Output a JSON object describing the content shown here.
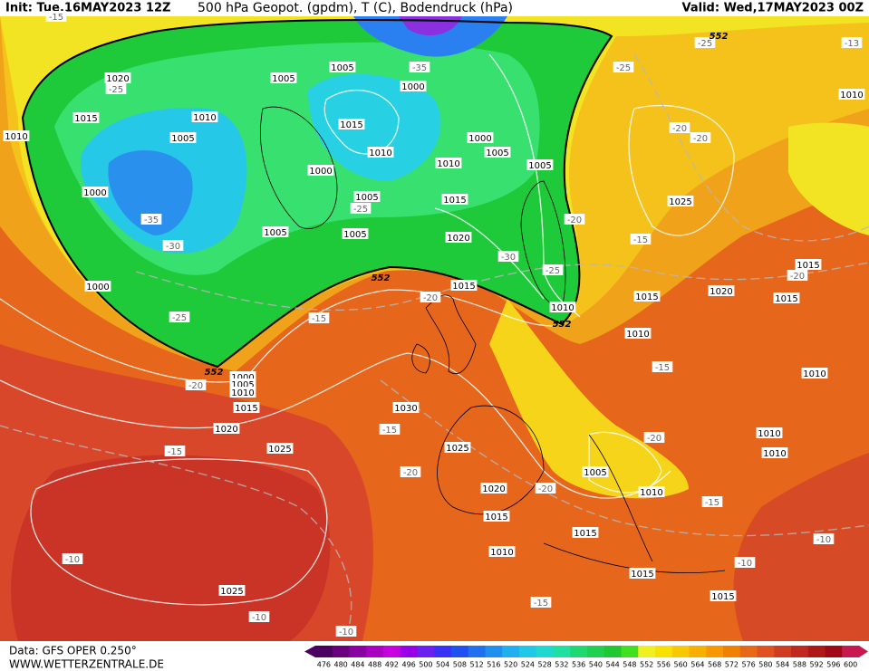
{
  "header": {
    "init": "Init: Tue,16MAY2023 12Z",
    "title": "500 hPa Geopot. (gpdm), T (C), Bodendruck (hPa)",
    "valid": "Valid: Wed,17MAY2023 00Z"
  },
  "footer": {
    "source": "Data: GFS OPER 0.250°",
    "website": "WWW.WETTERZENTRALE.DE"
  },
  "isobar_labels": [
    "1020",
    "1015",
    "1010",
    "1005",
    "1000",
    "1005",
    "1005",
    "1000",
    "1015",
    "1010",
    "1000",
    "1010",
    "1000",
    "1005",
    "1005",
    "1005",
    "1015",
    "1005",
    "1005",
    "1020",
    "1015",
    "1000",
    "1010",
    "1015",
    "1020",
    "1015",
    "1015",
    "1025",
    "1010",
    "1010",
    "1000",
    "1005",
    "1010",
    "1015",
    "1020",
    "1025",
    "1030",
    "1025",
    "1020",
    "1015",
    "1005",
    "1010",
    "1015",
    "1010",
    "1015",
    "1015",
    "1025",
    "1010",
    "1010",
    "1010",
    "1010"
  ],
  "temperature_labels": [
    "-25",
    "-35",
    "-30",
    "-25",
    "-35",
    "-25",
    "-25",
    "-20",
    "-20",
    "-25",
    "-20",
    "-15",
    "-30",
    "-25",
    "-20",
    "-15",
    "-20",
    "-15",
    "-20",
    "-15",
    "-20",
    "-15",
    "-20",
    "-20",
    "-15",
    "-10",
    "-10",
    "-10",
    "-15",
    "-10",
    "-10",
    "-13",
    "-15"
  ],
  "contour_552_labels": [
    "552",
    "552",
    "552",
    "552"
  ],
  "colorbar": {
    "values": [
      476,
      480,
      484,
      488,
      492,
      496,
      500,
      504,
      508,
      512,
      516,
      520,
      524,
      528,
      532,
      536,
      540,
      544,
      548,
      552,
      556,
      560,
      564,
      568,
      572,
      576,
      580,
      584,
      588,
      592,
      596,
      600
    ],
    "colors": [
      "#4b0060",
      "#6a0080",
      "#8a00a0",
      "#aa00c0",
      "#c800e0",
      "#9a00e8",
      "#6a20f0",
      "#3a30f8",
      "#2050f0",
      "#2070f0",
      "#2090f0",
      "#20b0f0",
      "#20c8e8",
      "#20d8d0",
      "#20e0a0",
      "#20d870",
      "#20d050",
      "#20c830",
      "#40e020",
      "#f0f020",
      "#f8e000",
      "#f8c800",
      "#f8b000",
      "#f89800",
      "#f08000",
      "#e86818",
      "#e05020",
      "#d03c20",
      "#c02820",
      "#b01818",
      "#a00818",
      "#c81850"
    ]
  }
}
